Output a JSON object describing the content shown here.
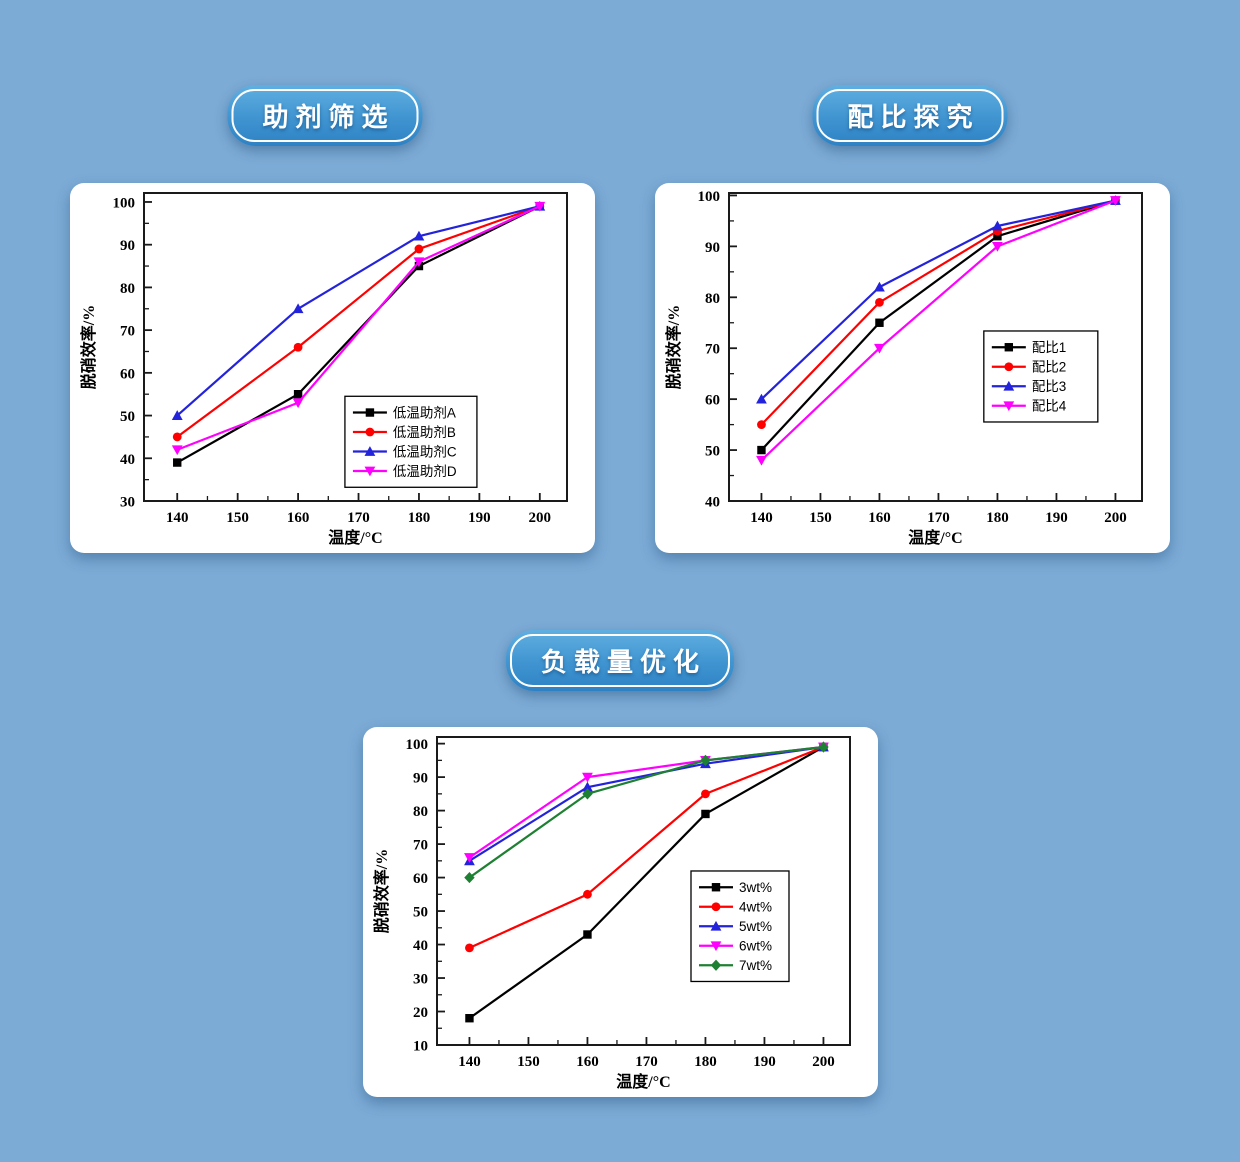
{
  "page": {
    "background": "#7CABD6"
  },
  "badges": [
    {
      "label": "助剂筛选"
    },
    {
      "label": "配比探究"
    },
    {
      "label": "负载量优化"
    }
  ],
  "chart_data": [
    {
      "type": "line",
      "title": "助剂筛选",
      "x": [
        140,
        160,
        180,
        200
      ],
      "xticks": [
        140,
        150,
        160,
        170,
        180,
        190,
        200
      ],
      "yticks": [
        30,
        40,
        50,
        60,
        70,
        80,
        90,
        100
      ],
      "xlim": [
        134.5,
        204.5
      ],
      "ylim": [
        30,
        100
      ],
      "xlabel": "温度/°C",
      "ylabel": "脱硝效率/%",
      "grid": false,
      "legend_position": "inside lower right",
      "series": [
        {
          "name": "低温助剂A",
          "color": "#000000",
          "marker": "square",
          "values": [
            39,
            55,
            85,
            99
          ]
        },
        {
          "name": "低温助剂B",
          "color": "#FF0000",
          "marker": "circle",
          "values": [
            45,
            66,
            89,
            99
          ]
        },
        {
          "name": "低温助剂C",
          "color": "#2323DC",
          "marker": "triangle-up",
          "values": [
            50,
            75,
            92,
            99
          ]
        },
        {
          "name": "低温助剂D",
          "color": "#FF00FF",
          "marker": "triangle-down",
          "values": [
            42,
            53,
            86,
            99
          ]
        }
      ]
    },
    {
      "type": "line",
      "title": "配比探究",
      "x": [
        140,
        160,
        180,
        200
      ],
      "xticks": [
        140,
        150,
        160,
        170,
        180,
        190,
        200
      ],
      "yticks": [
        40,
        50,
        60,
        70,
        80,
        90,
        100
      ],
      "xlim": [
        134.5,
        204.5
      ],
      "ylim": [
        40,
        100
      ],
      "xlabel": "温度/°C",
      "ylabel": "脱硝效率/%",
      "grid": false,
      "legend_position": "inside middle right",
      "series": [
        {
          "name": "配比1",
          "color": "#000000",
          "marker": "square",
          "values": [
            50,
            75,
            92,
            99
          ]
        },
        {
          "name": "配比2",
          "color": "#FF0000",
          "marker": "circle",
          "values": [
            55,
            79,
            93,
            99
          ]
        },
        {
          "name": "配比3",
          "color": "#2323DC",
          "marker": "triangle-up",
          "values": [
            60,
            82,
            94,
            99
          ]
        },
        {
          "name": "配比4",
          "color": "#FF00FF",
          "marker": "triangle-down",
          "values": [
            48,
            70,
            90,
            99
          ]
        }
      ]
    },
    {
      "type": "line",
      "title": "负载量优化",
      "x": [
        140,
        160,
        180,
        200
      ],
      "xticks": [
        140,
        150,
        160,
        170,
        180,
        190,
        200
      ],
      "yticks": [
        10,
        20,
        30,
        40,
        50,
        60,
        70,
        80,
        90,
        100
      ],
      "xlim": [
        134.5,
        204.5
      ],
      "ylim": [
        10,
        100
      ],
      "xlabel": "温度/°C",
      "ylabel": "脱硝效率/%",
      "grid": false,
      "legend_position": "inside middle right",
      "series": [
        {
          "name": "3wt%",
          "color": "#000000",
          "marker": "square",
          "values": [
            18,
            43,
            79,
            99
          ]
        },
        {
          "name": "4wt%",
          "color": "#FF0000",
          "marker": "circle",
          "values": [
            39,
            55,
            85,
            99
          ]
        },
        {
          "name": "5wt%",
          "color": "#2323DC",
          "marker": "triangle-up",
          "values": [
            65,
            87,
            94,
            99
          ]
        },
        {
          "name": "6wt%",
          "color": "#FF00FF",
          "marker": "triangle-down",
          "values": [
            66,
            90,
            95,
            99
          ]
        },
        {
          "name": "7wt%",
          "color": "#1E8032",
          "marker": "diamond",
          "values": [
            60,
            85,
            95,
            99
          ]
        }
      ]
    }
  ]
}
